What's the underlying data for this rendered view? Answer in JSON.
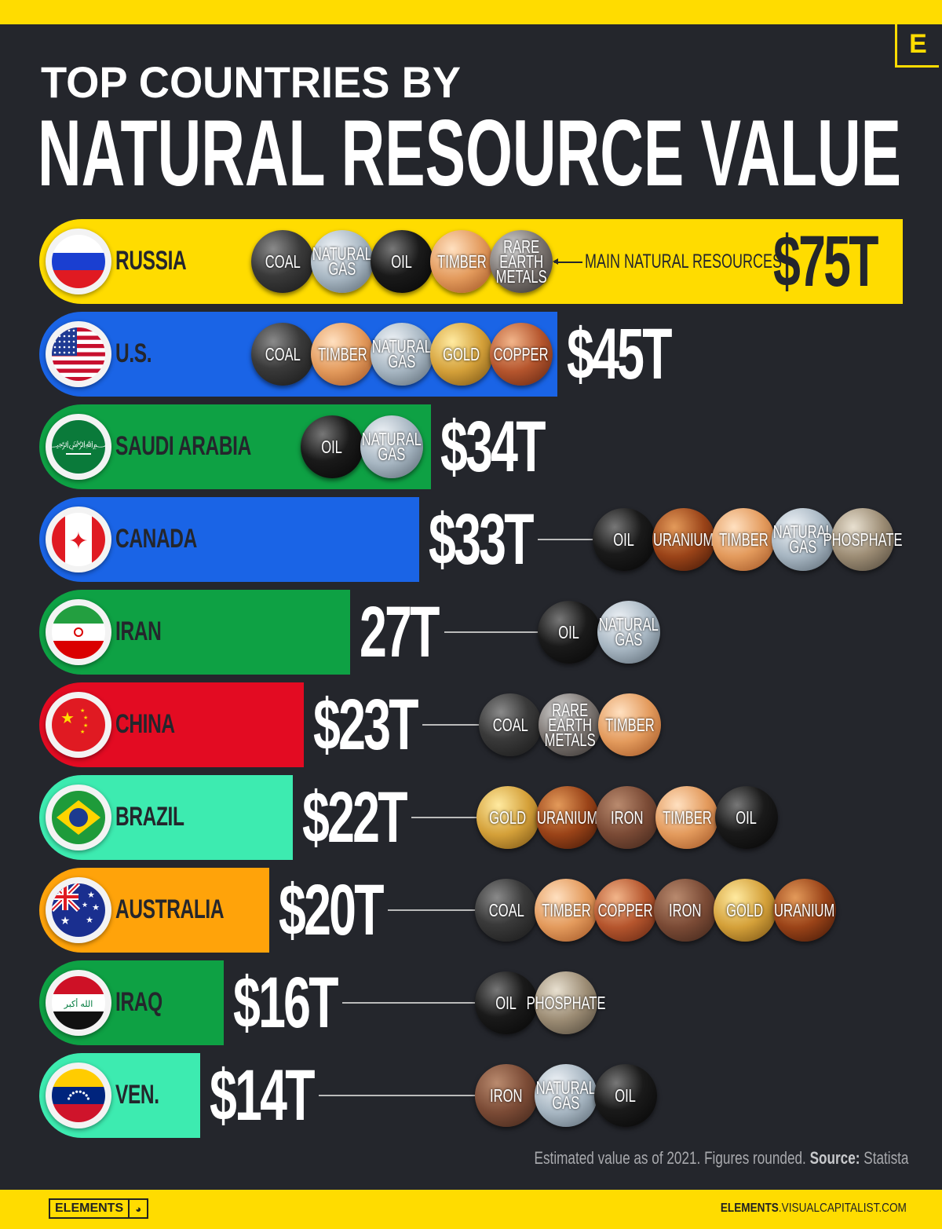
{
  "header": {
    "title_line1": "TOP COUNTRIES BY",
    "title_line2": "NATURAL RESOURCE VALUE",
    "logo_letter": "E"
  },
  "annotation": "MAIN NATURAL RESOURCES",
  "footer": {
    "note": "Estimated value as of 2021. Figures rounded.",
    "source_label": "Source:",
    "source": "Statista",
    "brand": "ELEMENTS",
    "site_bold": "ELEMENTS",
    "site_rest": ".VISUALCAPITALIST.COM"
  },
  "colors": {
    "background": "#24262c",
    "accent_yellow": "#ffdc00",
    "blue": "#1a64e6",
    "green": "#0ea144",
    "red": "#e30b22",
    "mint": "#3debb0",
    "orange": "#ffa30a"
  },
  "chart_data": {
    "type": "bar",
    "orientation": "horizontal",
    "unit": "trillion USD",
    "title": "TOP COUNTRIES BY NATURAL RESOURCE VALUE",
    "categories": [
      "RUSSIA",
      "U.S.",
      "SAUDI ARABIA",
      "CANADA",
      "IRAN",
      "CHINA",
      "BRAZIL",
      "AUSTRALIA",
      "IRAQ",
      "VEN."
    ],
    "values": [
      75,
      45,
      34,
      33,
      27,
      23,
      22,
      20,
      16,
      14
    ],
    "rows": [
      {
        "country": "RUSSIA",
        "value": 75,
        "label": "$75T",
        "color": "#ffdc00",
        "flag": "russia",
        "resources": [
          "COAL",
          "NATURAL\nGAS",
          "OIL",
          "TIMBER",
          "RARE\nEARTH\nMETALS"
        ]
      },
      {
        "country": "U.S.",
        "value": 45,
        "label": "$45T",
        "color": "#1a64e6",
        "flag": "usa",
        "resources": [
          "COAL",
          "TIMBER",
          "NATURAL\nGAS",
          "GOLD",
          "COPPER"
        ]
      },
      {
        "country": "SAUDI ARABIA",
        "value": 34,
        "label": "$34T",
        "color": "#0ea144",
        "flag": "saudi",
        "resources": [
          "OIL",
          "NATURAL\nGAS"
        ]
      },
      {
        "country": "CANADA",
        "value": 33,
        "label": "$33T",
        "color": "#1a64e6",
        "flag": "canada",
        "resources": [
          "OIL",
          "URANIUM",
          "TIMBER",
          "NATURAL\nGAS",
          "PHOSPHATE"
        ]
      },
      {
        "country": "IRAN",
        "value": 27,
        "label": "27T",
        "color": "#0ea144",
        "flag": "iran",
        "resources": [
          "OIL",
          "NATURAL\nGAS"
        ]
      },
      {
        "country": "CHINA",
        "value": 23,
        "label": "$23T",
        "color": "#e30b22",
        "flag": "china",
        "resources": [
          "COAL",
          "RARE\nEARTH\nMETALS",
          "TIMBER"
        ]
      },
      {
        "country": "BRAZIL",
        "value": 22,
        "label": "$22T",
        "color": "#3debb0",
        "flag": "brazil",
        "resources": [
          "GOLD",
          "URANIUM",
          "IRON",
          "TIMBER",
          "OIL"
        ]
      },
      {
        "country": "AUSTRALIA",
        "value": 20,
        "label": "$20T",
        "color": "#ffa30a",
        "flag": "australia",
        "resources": [
          "COAL",
          "TIMBER",
          "COPPER",
          "IRON",
          "GOLD",
          "URANIUM"
        ]
      },
      {
        "country": "IRAQ",
        "value": 16,
        "label": "$16T",
        "color": "#0ea144",
        "flag": "iraq",
        "resources": [
          "OIL",
          "PHOSPHATE"
        ]
      },
      {
        "country": "VEN.",
        "value": 14,
        "label": "$14T",
        "color": "#3debb0",
        "flag": "venezuela",
        "resources": [
          "IRON",
          "NATURAL\nGAS",
          "OIL"
        ]
      }
    ],
    "xlim": [
      0,
      75
    ],
    "grid": false,
    "legend": "none"
  }
}
